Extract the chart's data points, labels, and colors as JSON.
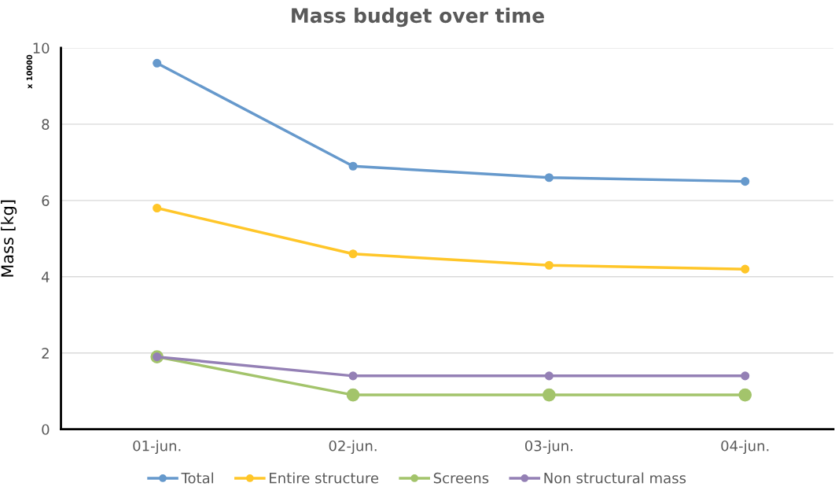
{
  "chart_data": {
    "type": "line",
    "title": "Mass budget over time",
    "ylabel": "Mass [kg]",
    "annotations": [
      "x 10000"
    ],
    "categories": [
      "01-jun.",
      "02-jun.",
      "03-jun.",
      "04-jun."
    ],
    "series": [
      {
        "name": "Total",
        "color": "#6699cc",
        "values": [
          9.6,
          6.9,
          6.6,
          6.5
        ]
      },
      {
        "name": "Entire structure",
        "color": "#ffc629",
        "values": [
          5.8,
          4.6,
          4.3,
          4.2
        ]
      },
      {
        "name": "Screens",
        "color": "#a3c46b",
        "values": [
          1.9,
          0.9,
          0.9,
          0.9
        ]
      },
      {
        "name": "Non structural mass",
        "color": "#9480b5",
        "values": [
          1.9,
          1.4,
          1.4,
          1.4
        ]
      }
    ],
    "ylim": [
      0,
      10
    ],
    "yticks": [
      0,
      2,
      4,
      6,
      8,
      10
    ],
    "grid": "y",
    "legend": "bottom",
    "marker": "circle",
    "line_style": "solid"
  }
}
